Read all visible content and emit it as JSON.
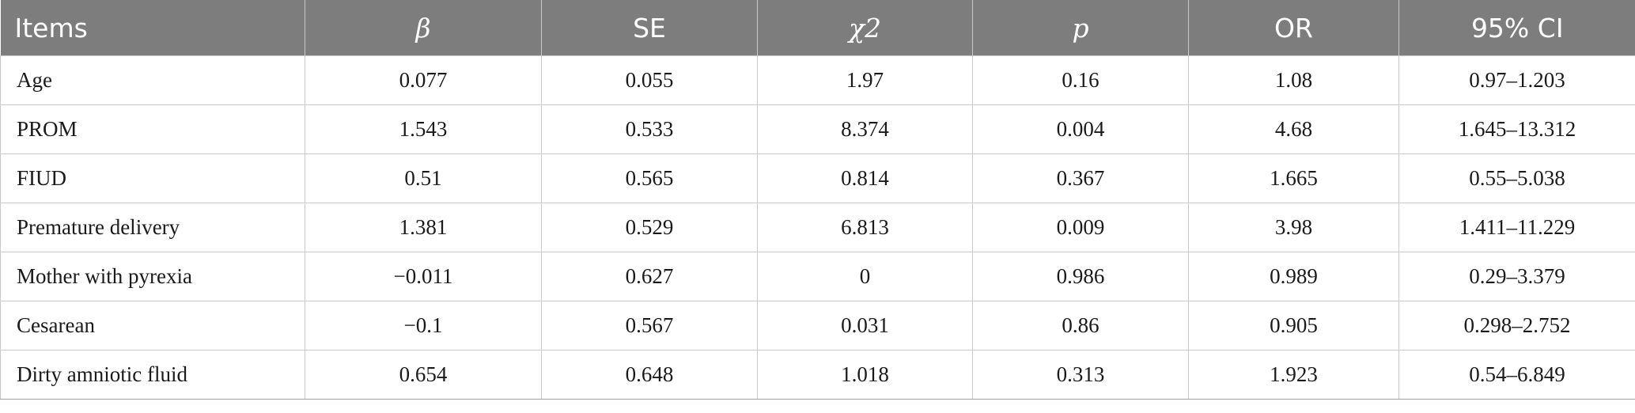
{
  "table": {
    "headers": [
      "Items",
      "β",
      "SE",
      "χ2",
      "p",
      "OR",
      "95% CI"
    ],
    "rows": [
      [
        "Age",
        "0.077",
        "0.055",
        "1.97",
        "0.16",
        "1.08",
        "0.97–1.203"
      ],
      [
        "PROM",
        "1.543",
        "0.533",
        "8.374",
        "0.004",
        "4.68",
        "1.645–13.312"
      ],
      [
        "FIUD",
        "0.51",
        "0.565",
        "0.814",
        "0.367",
        "1.665",
        "0.55–5.038"
      ],
      [
        "Premature delivery",
        "1.381",
        "0.529",
        "6.813",
        "0.009",
        "3.98",
        "1.411–11.229"
      ],
      [
        "Mother with pyrexia",
        "−0.011",
        "0.627",
        "0",
        "0.986",
        "0.989",
        "0.29–3.379"
      ],
      [
        "Cesarean",
        "−0.1",
        "0.567",
        "0.031",
        "0.86",
        "0.905",
        "0.298–2.752"
      ],
      [
        "Dirty amniotic fluid",
        "0.654",
        "0.648",
        "1.018",
        "0.313",
        "1.923",
        "0.54–6.849"
      ]
    ]
  },
  "colors": {
    "header_bg": "#7d7d7d",
    "header_text": "#ffffff",
    "cell_border": "#c9c9c9"
  }
}
